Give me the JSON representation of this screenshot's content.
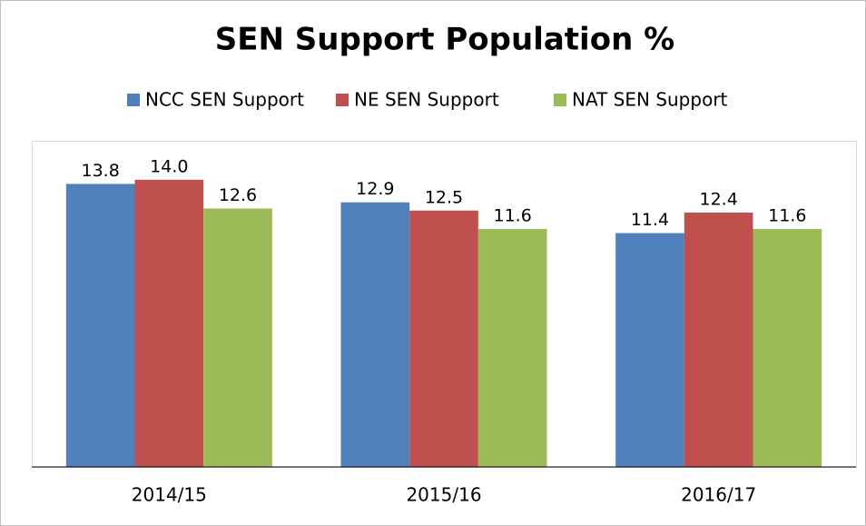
{
  "chart_data": {
    "type": "bar",
    "title": "SEN Support Population %",
    "categories": [
      "2014/15",
      "2015/16",
      "2016/17"
    ],
    "series": [
      {
        "name": "NCC SEN Support",
        "color": "#4f81bd",
        "values": [
          13.8,
          12.9,
          11.4
        ],
        "value_labels": [
          "13.8",
          "12.9",
          "11.4"
        ]
      },
      {
        "name": "NE SEN Support",
        "color": "#c0504d",
        "values": [
          14.0,
          12.5,
          12.4
        ],
        "value_labels": [
          "14.0",
          "12.5",
          "12.4"
        ]
      },
      {
        "name": "NAT SEN Support",
        "color": "#9bbb59",
        "values": [
          12.6,
          11.6,
          11.6
        ],
        "value_labels": [
          "12.6",
          "11.6",
          "11.6"
        ]
      }
    ],
    "ylim": [
      0,
      15.9
    ],
    "grid": false,
    "legend": "top"
  }
}
